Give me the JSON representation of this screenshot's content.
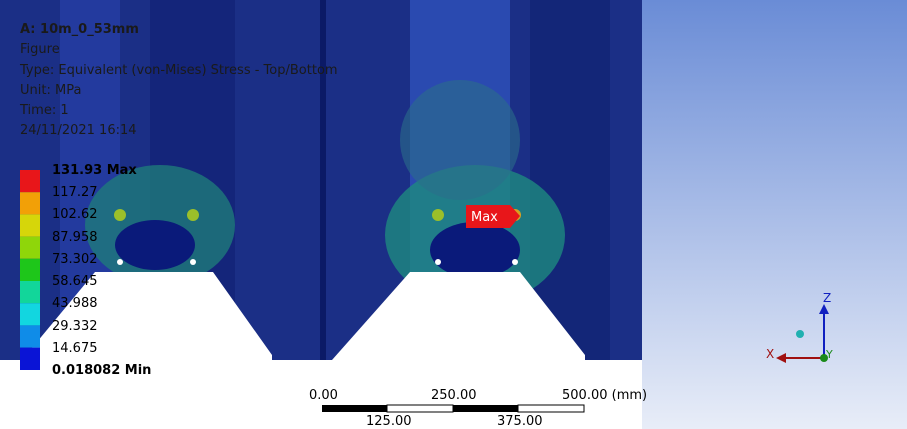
{
  "header": {
    "title": "A: 10m_0_53mm",
    "lines": [
      "Figure",
      "Type: Equivalent (von-Mises) Stress - Top/Bottom",
      "Unit: MPa",
      "Time: 1",
      "24/11/2021 16:14"
    ]
  },
  "legend": [
    "131.93 Max",
    "117.27",
    "102.62",
    "87.958",
    "73.302",
    "58.645",
    "43.988",
    "29.332",
    "14.675",
    "0.018082 Min"
  ],
  "max_marker": "Max",
  "scale_bar": {
    "top": [
      "0.00",
      "250.00",
      "500.00 (mm)"
    ],
    "bottom": [
      "125.00",
      "375.00"
    ]
  },
  "triad": {
    "z": "Z",
    "x": "X",
    "y": "Y"
  }
}
